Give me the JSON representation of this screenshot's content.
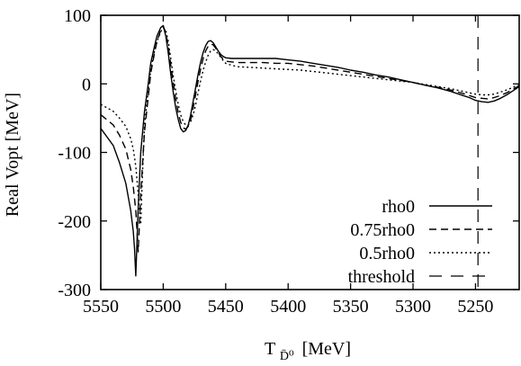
{
  "chart_data": {
    "type": "line",
    "xlabel": "T",
    "xlabel_sub": "D̄⁰",
    "xlabel_unit": "[MeV]",
    "ylabel": "Real Vopt [MeV]",
    "xlim": [
      5550,
      5215
    ],
    "ylim": [
      -300,
      100
    ],
    "x_reversed": true,
    "xticks": [
      5550,
      5500,
      5450,
      5400,
      5350,
      5300,
      5250
    ],
    "yticks": [
      -300,
      -200,
      -100,
      0,
      100
    ],
    "legend_position": "bottom-right",
    "grid": false,
    "series": [
      {
        "name": "rho0",
        "style": "solid",
        "x": [
          5550,
          5540,
          5535,
          5530,
          5526,
          5524,
          5523,
          5522,
          5520,
          5518,
          5515,
          5512,
          5510,
          5507,
          5505,
          5502,
          5500,
          5498,
          5496,
          5494,
          5492,
          5490,
          5488,
          5486,
          5484,
          5482,
          5480,
          5478,
          5476,
          5474,
          5472,
          5470,
          5468,
          5466,
          5464,
          5462,
          5460,
          5458,
          5456,
          5454,
          5452,
          5450,
          5445,
          5440,
          5430,
          5420,
          5410,
          5400,
          5390,
          5380,
          5370,
          5360,
          5350,
          5340,
          5330,
          5320,
          5310,
          5300,
          5290,
          5280,
          5270,
          5260,
          5255,
          5250,
          5245,
          5240,
          5235,
          5230,
          5225,
          5220,
          5215
        ],
        "y": [
          -65,
          -90,
          -115,
          -145,
          -185,
          -215,
          -240,
          -280,
          -180,
          -100,
          -40,
          0,
          30,
          55,
          70,
          82,
          85,
          70,
          45,
          15,
          -12,
          -35,
          -52,
          -65,
          -70,
          -68,
          -60,
          -45,
          -25,
          -5,
          15,
          32,
          46,
          56,
          62,
          63,
          60,
          54,
          48,
          43,
          40,
          38,
          37,
          37,
          37,
          37,
          37,
          35,
          33,
          30,
          27,
          24,
          20,
          17,
          13,
          10,
          6,
          2,
          -2,
          -6,
          -11,
          -17,
          -20,
          -24,
          -26,
          -27,
          -25,
          -21,
          -16,
          -10,
          -4
        ]
      },
      {
        "name": "0.75rho0",
        "style": "dashed",
        "x": [
          5550,
          5540,
          5535,
          5530,
          5526,
          5524,
          5522,
          5521,
          5520,
          5518,
          5515,
          5512,
          5510,
          5507,
          5505,
          5502,
          5500,
          5498,
          5496,
          5494,
          5492,
          5490,
          5488,
          5486,
          5484,
          5482,
          5480,
          5478,
          5476,
          5474,
          5472,
          5470,
          5468,
          5466,
          5464,
          5462,
          5460,
          5458,
          5456,
          5454,
          5452,
          5450,
          5445,
          5440,
          5430,
          5420,
          5410,
          5400,
          5390,
          5380,
          5370,
          5360,
          5350,
          5340,
          5330,
          5320,
          5310,
          5300,
          5290,
          5280,
          5270,
          5260,
          5255,
          5250,
          5245,
          5240,
          5235,
          5230,
          5225,
          5220,
          5215
        ],
        "y": [
          -45,
          -60,
          -75,
          -95,
          -125,
          -150,
          -185,
          -215,
          -245,
          -160,
          -70,
          -20,
          15,
          45,
          62,
          78,
          84,
          75,
          55,
          28,
          2,
          -22,
          -42,
          -56,
          -64,
          -66,
          -62,
          -52,
          -35,
          -15,
          5,
          22,
          37,
          48,
          55,
          58,
          57,
          52,
          46,
          40,
          36,
          33,
          32,
          31,
          31,
          31,
          30,
          30,
          28,
          26,
          23,
          20,
          17,
          14,
          11,
          8,
          5,
          2,
          -2,
          -5,
          -9,
          -14,
          -17,
          -20,
          -21,
          -22,
          -20,
          -17,
          -13,
          -8,
          -3
        ]
      },
      {
        "name": "0.5rho0",
        "style": "dotted",
        "x": [
          5550,
          5540,
          5535,
          5530,
          5526,
          5524,
          5522,
          5520,
          5519,
          5518,
          5517,
          5515,
          5512,
          5510,
          5507,
          5505,
          5502,
          5500,
          5498,
          5496,
          5494,
          5492,
          5490,
          5488,
          5486,
          5484,
          5482,
          5480,
          5478,
          5476,
          5474,
          5472,
          5470,
          5468,
          5466,
          5464,
          5462,
          5460,
          5458,
          5456,
          5454,
          5452,
          5450,
          5445,
          5440,
          5430,
          5420,
          5410,
          5400,
          5390,
          5380,
          5370,
          5360,
          5350,
          5340,
          5330,
          5320,
          5310,
          5300,
          5290,
          5280,
          5270,
          5260,
          5255,
          5250,
          5245,
          5240,
          5235,
          5230,
          5225,
          5220,
          5215
        ],
        "y": [
          -30,
          -40,
          -50,
          -62,
          -80,
          -95,
          -120,
          -160,
          -185,
          -205,
          -150,
          -60,
          -10,
          20,
          48,
          62,
          76,
          82,
          78,
          62,
          38,
          12,
          -10,
          -30,
          -45,
          -55,
          -60,
          -60,
          -55,
          -45,
          -30,
          -12,
          5,
          20,
          32,
          42,
          48,
          50,
          48,
          44,
          39,
          34,
          30,
          27,
          25,
          24,
          23,
          22,
          21,
          20,
          18,
          16,
          14,
          12,
          10,
          8,
          6,
          4,
          2,
          -1,
          -4,
          -7,
          -11,
          -13,
          -15,
          -16,
          -16,
          -15,
          -12,
          -9,
          -5,
          -2
        ]
      }
    ],
    "threshold": {
      "name": "threshold",
      "style": "long-dashed",
      "x": 5248
    }
  }
}
